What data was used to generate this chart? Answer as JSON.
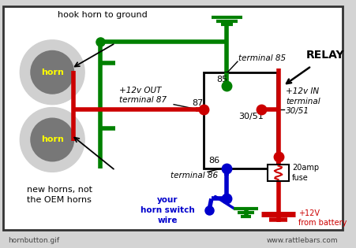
{
  "green": "#008000",
  "red": "#cc0000",
  "blue": "#0000cc",
  "yellow": "#ffff00",
  "gray_outer": "#c8c8c8",
  "gray_inner": "#808080",
  "bottom_left": "hornbutton.gif",
  "bottom_right": "www.rattlebars.com",
  "hook_horn": "hook horn to ground",
  "new_horns": "new horns, not\nthe OEM horns",
  "your_wire": "your\nhorn switch\nwire",
  "plus12v": "+12V\nfrom battery",
  "twenty_amp": "20amp\nfuse",
  "relay_label": "RELAY",
  "t85": "terminal 85",
  "t86": "terminal 86",
  "t87": "+12v OUT\nterminal 87",
  "t30": "+12v IN\nterminal\n30/51"
}
